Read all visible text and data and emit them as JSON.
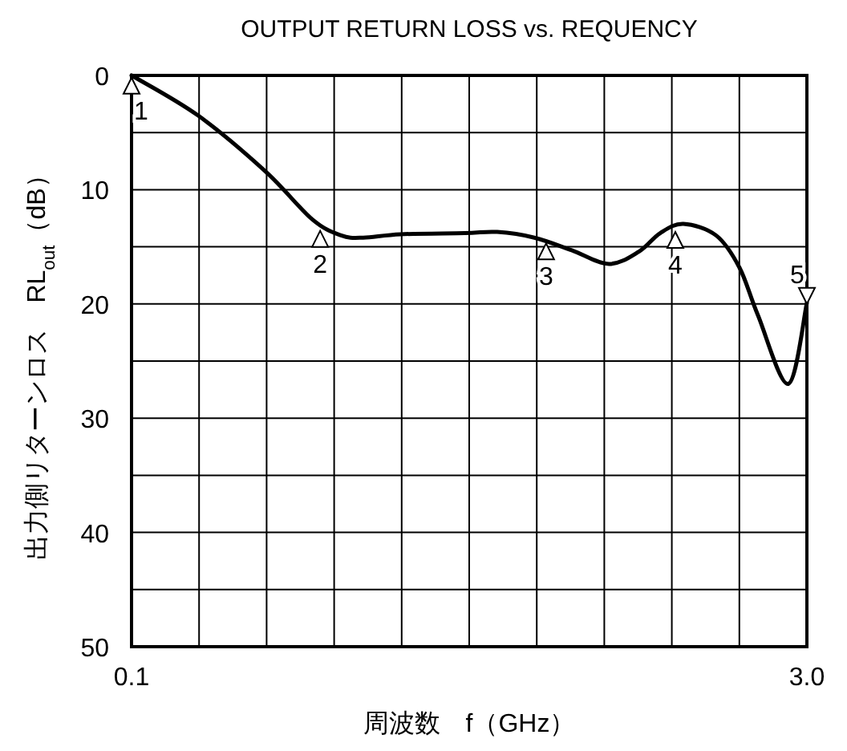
{
  "chart_data": {
    "type": "line",
    "title": "OUTPUT RETURN LOSS vs. REQUENCY",
    "xlabel": "周波数　f（GHz）",
    "ylabel": "出力側リターンロス　RL$_{out}$（dB）",
    "x": [
      0.1,
      0.385,
      0.675,
      0.876,
      1.0,
      1.095,
      1.255,
      1.53,
      1.67,
      1.83,
      1.99,
      2.15,
      2.28,
      2.37,
      2.47,
      2.61,
      2.71,
      2.79,
      2.92,
      3.0
    ],
    "series": [
      {
        "color": "#000000",
        "values": [
          0,
          3.5,
          8.4,
          12.6,
          14.0,
          14.2,
          13.9,
          13.8,
          13.7,
          14.2,
          15.3,
          16.5,
          15.4,
          13.8,
          13.0,
          14.0,
          16.8,
          21.0,
          27.0,
          19.9
        ]
      }
    ],
    "xlim": [
      0.1,
      3.0
    ],
    "ylim": [
      50,
      0
    ],
    "xticks": [
      0.1,
      {
        "value": 0.39,
        "label": null
      },
      {
        "value": 0.68,
        "label": null
      },
      {
        "value": 0.97,
        "label": null
      },
      {
        "value": 1.26,
        "label": null
      },
      {
        "value": 1.55,
        "label": null
      },
      {
        "value": 1.84,
        "label": null
      },
      {
        "value": 2.13,
        "label": null
      },
      {
        "value": 2.42,
        "label": null
      },
      {
        "value": 2.71,
        "label": null
      },
      {
        "value": 3.0,
        "label": "3.0"
      }
    ],
    "yticks": [
      0,
      {
        "value": 5,
        "label": null
      },
      10,
      {
        "value": 15,
        "label": null
      },
      20,
      {
        "value": 25,
        "label": null
      },
      30,
      {
        "value": 35,
        "label": null
      },
      40,
      {
        "value": 45,
        "label": null
      },
      50
    ],
    "grid": true,
    "annotations": [
      {
        "text": "1",
        "x": 0.1,
        "y": 0.2
      },
      {
        "text": "2",
        "x": 0.91,
        "y": 13.6
      },
      {
        "text": "3",
        "x": 1.88,
        "y": 14.7
      },
      {
        "text": "4",
        "x": 2.435,
        "y": 13.7
      },
      {
        "text": "5",
        "x": 3.0,
        "y": 20
      }
    ]
  }
}
